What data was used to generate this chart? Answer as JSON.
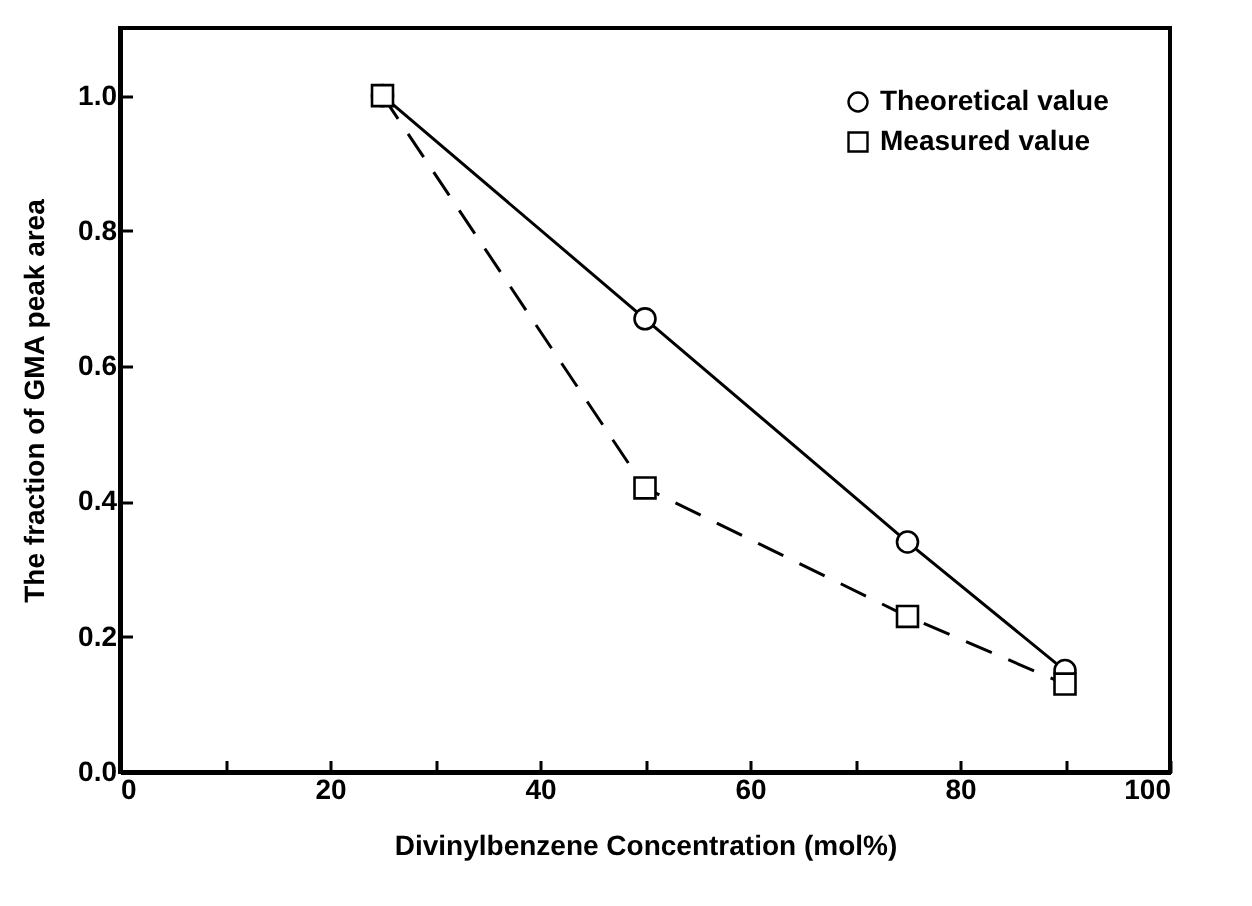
{
  "chart_data": {
    "type": "line",
    "xlabel": "Divinylbenzene Concentration (mol%)",
    "ylabel": "The fraction of GMA peak area",
    "x": [
      25,
      50,
      75,
      90
    ],
    "series": [
      {
        "name": "Theoretical value",
        "color": "#000000",
        "values": [
          1.0,
          0.67,
          0.34,
          0.15
        ],
        "marker": "circle",
        "line_style": "solid"
      },
      {
        "name": "Measured value",
        "color": "#000000",
        "values": [
          1.0,
          0.42,
          0.23,
          0.13
        ],
        "marker": "square",
        "line_style": "dashed"
      }
    ],
    "xlim": [
      0,
      100
    ],
    "ylim": [
      0,
      1.1
    ],
    "xticks": [
      0,
      {
        "value": 10,
        "label": null
      },
      20,
      {
        "value": 30,
        "label": null
      },
      40,
      {
        "value": 50,
        "label": null
      },
      60,
      {
        "value": 70,
        "label": null
      },
      80,
      {
        "value": 90,
        "label": null
      },
      100
    ],
    "yticks": [
      {
        "value": 0,
        "label": "0.0"
      },
      0.2,
      0.4,
      0.6,
      0.8,
      {
        "value": 1.0,
        "label": "1.0"
      }
    ],
    "grid": false,
    "legend": "top right"
  }
}
